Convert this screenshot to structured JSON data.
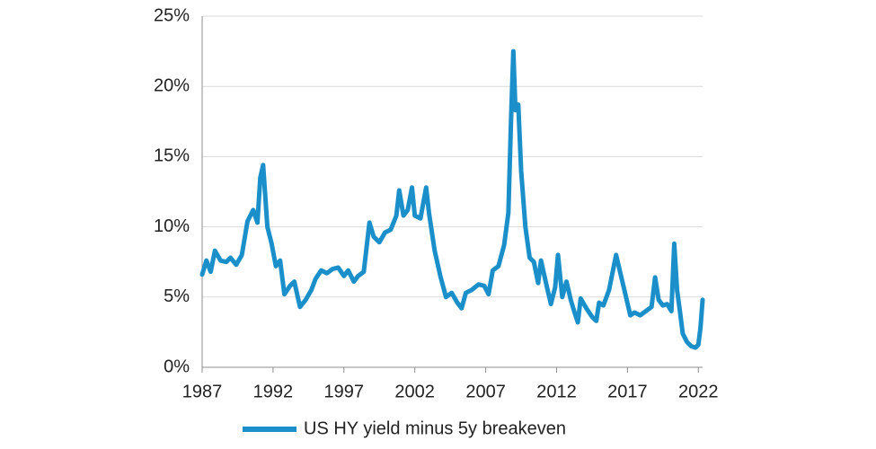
{
  "chart_data": {
    "type": "line",
    "x": [
      1987.0,
      1987.3,
      1987.6,
      1987.9,
      1988.3,
      1988.7,
      1989.0,
      1989.4,
      1989.8,
      1990.2,
      1990.6,
      1990.9,
      1991.1,
      1991.3,
      1991.6,
      1991.9,
      1992.2,
      1992.5,
      1992.8,
      1993.2,
      1993.5,
      1993.9,
      1994.3,
      1994.7,
      1995.0,
      1995.4,
      1995.8,
      1996.2,
      1996.6,
      1997.0,
      1997.3,
      1997.7,
      1998.0,
      1998.4,
      1998.8,
      1999.1,
      1999.5,
      1999.9,
      2000.3,
      2000.7,
      2000.9,
      2001.2,
      2001.5,
      2001.8,
      2002.0,
      2002.4,
      2002.8,
      2003.0,
      2003.4,
      2003.8,
      2004.2,
      2004.6,
      2005.0,
      2005.3,
      2005.6,
      2006.0,
      2006.5,
      2006.9,
      2007.2,
      2007.5,
      2007.9,
      2008.3,
      2008.6,
      2008.8,
      2008.95,
      2009.1,
      2009.3,
      2009.5,
      2009.8,
      2010.1,
      2010.4,
      2010.7,
      2010.9,
      2011.3,
      2011.6,
      2011.9,
      2012.1,
      2012.4,
      2012.7,
      2013.0,
      2013.3,
      2013.5,
      2013.7,
      2014.1,
      2014.5,
      2014.8,
      2015.0,
      2015.3,
      2015.7,
      2016.0,
      2016.2,
      2016.5,
      2016.9,
      2017.2,
      2017.5,
      2017.9,
      2018.3,
      2018.7,
      2018.95,
      2019.2,
      2019.5,
      2019.8,
      2020.1,
      2020.3,
      2020.5,
      2020.7,
      2020.9,
      2021.2,
      2021.5,
      2021.8,
      2022.0,
      2022.15,
      2022.3
    ],
    "series": [
      {
        "name": "US HY yield minus 5y breakeven",
        "color": "#1a8fc9",
        "values": [
          6.6,
          7.6,
          6.8,
          8.3,
          7.6,
          7.5,
          7.8,
          7.3,
          8.0,
          10.4,
          11.2,
          10.3,
          13.5,
          14.4,
          10.0,
          8.8,
          7.2,
          7.6,
          5.2,
          5.8,
          6.1,
          4.3,
          4.8,
          5.5,
          6.3,
          6.9,
          6.7,
          7.0,
          7.1,
          6.5,
          6.9,
          6.1,
          6.5,
          6.8,
          10.3,
          9.3,
          8.9,
          9.6,
          9.8,
          10.8,
          12.6,
          10.8,
          11.2,
          12.8,
          10.8,
          10.6,
          12.8,
          11.0,
          8.3,
          6.5,
          5.0,
          5.3,
          4.6,
          4.2,
          5.3,
          5.5,
          5.9,
          5.8,
          5.2,
          6.9,
          7.2,
          8.7,
          11.0,
          18.0,
          22.5,
          18.3,
          18.7,
          14.0,
          10.0,
          7.8,
          7.5,
          6.0,
          7.6,
          5.8,
          4.5,
          5.7,
          8.0,
          5.0,
          6.1,
          4.8,
          3.8,
          3.2,
          4.9,
          4.2,
          3.6,
          3.3,
          4.6,
          4.4,
          5.5,
          7.0,
          8.0,
          6.7,
          5.0,
          3.7,
          3.9,
          3.7,
          4.0,
          4.3,
          6.4,
          4.8,
          4.4,
          4.5,
          4.0,
          8.8,
          5.5,
          4.0,
          2.4,
          1.8,
          1.5,
          1.4,
          1.6,
          2.8,
          4.8
        ]
      }
    ],
    "xlim": [
      1987,
      2022.3
    ],
    "xticks": [
      1987,
      1992,
      1997,
      2002,
      2007,
      2012,
      2017,
      2022
    ],
    "ylim": [
      0,
      25
    ],
    "yticks": [
      {
        "value": 0,
        "label": "0%"
      },
      {
        "value": 5,
        "label": "5%"
      },
      {
        "value": 10,
        "label": "10%"
      },
      {
        "value": 15,
        "label": "15%"
      },
      {
        "value": 20,
        "label": "20%"
      },
      {
        "value": 25,
        "label": "25%"
      }
    ],
    "grid": true,
    "legend": "bottom"
  }
}
